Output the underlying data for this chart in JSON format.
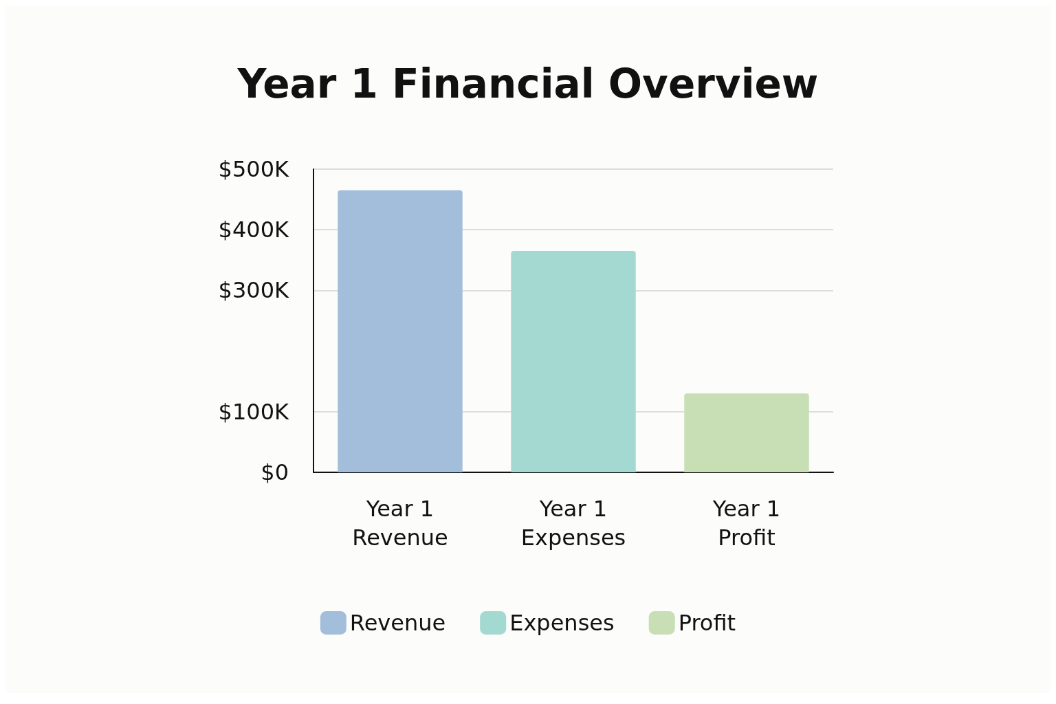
{
  "chart_data": {
    "type": "bar",
    "title": "Year 1 Financial Overview",
    "categories": [
      "Year 1\nRevenue",
      "Year 1\nExpenses",
      "Year 1\nProfit"
    ],
    "series": [
      {
        "name": "Revenue",
        "color": "#a3bedb",
        "values": [
          465,
          null,
          null
        ]
      },
      {
        "name": "Expenses",
        "color": "#a3d9d0",
        "values": [
          null,
          365,
          null
        ]
      },
      {
        "name": "Profit",
        "color": "#c8dfb5",
        "values": [
          null,
          null,
          130
        ]
      }
    ],
    "ylim": [
      0,
      500
    ],
    "yticks": [
      {
        "value": 0,
        "label": "$0"
      },
      {
        "value": 100,
        "label": "$100K"
      },
      {
        "value": 300,
        "label": "$300K"
      },
      {
        "value": 400,
        "label": "$400K"
      },
      {
        "value": 500,
        "label": "$500K"
      }
    ],
    "grid": "y",
    "legend": "bottom"
  }
}
